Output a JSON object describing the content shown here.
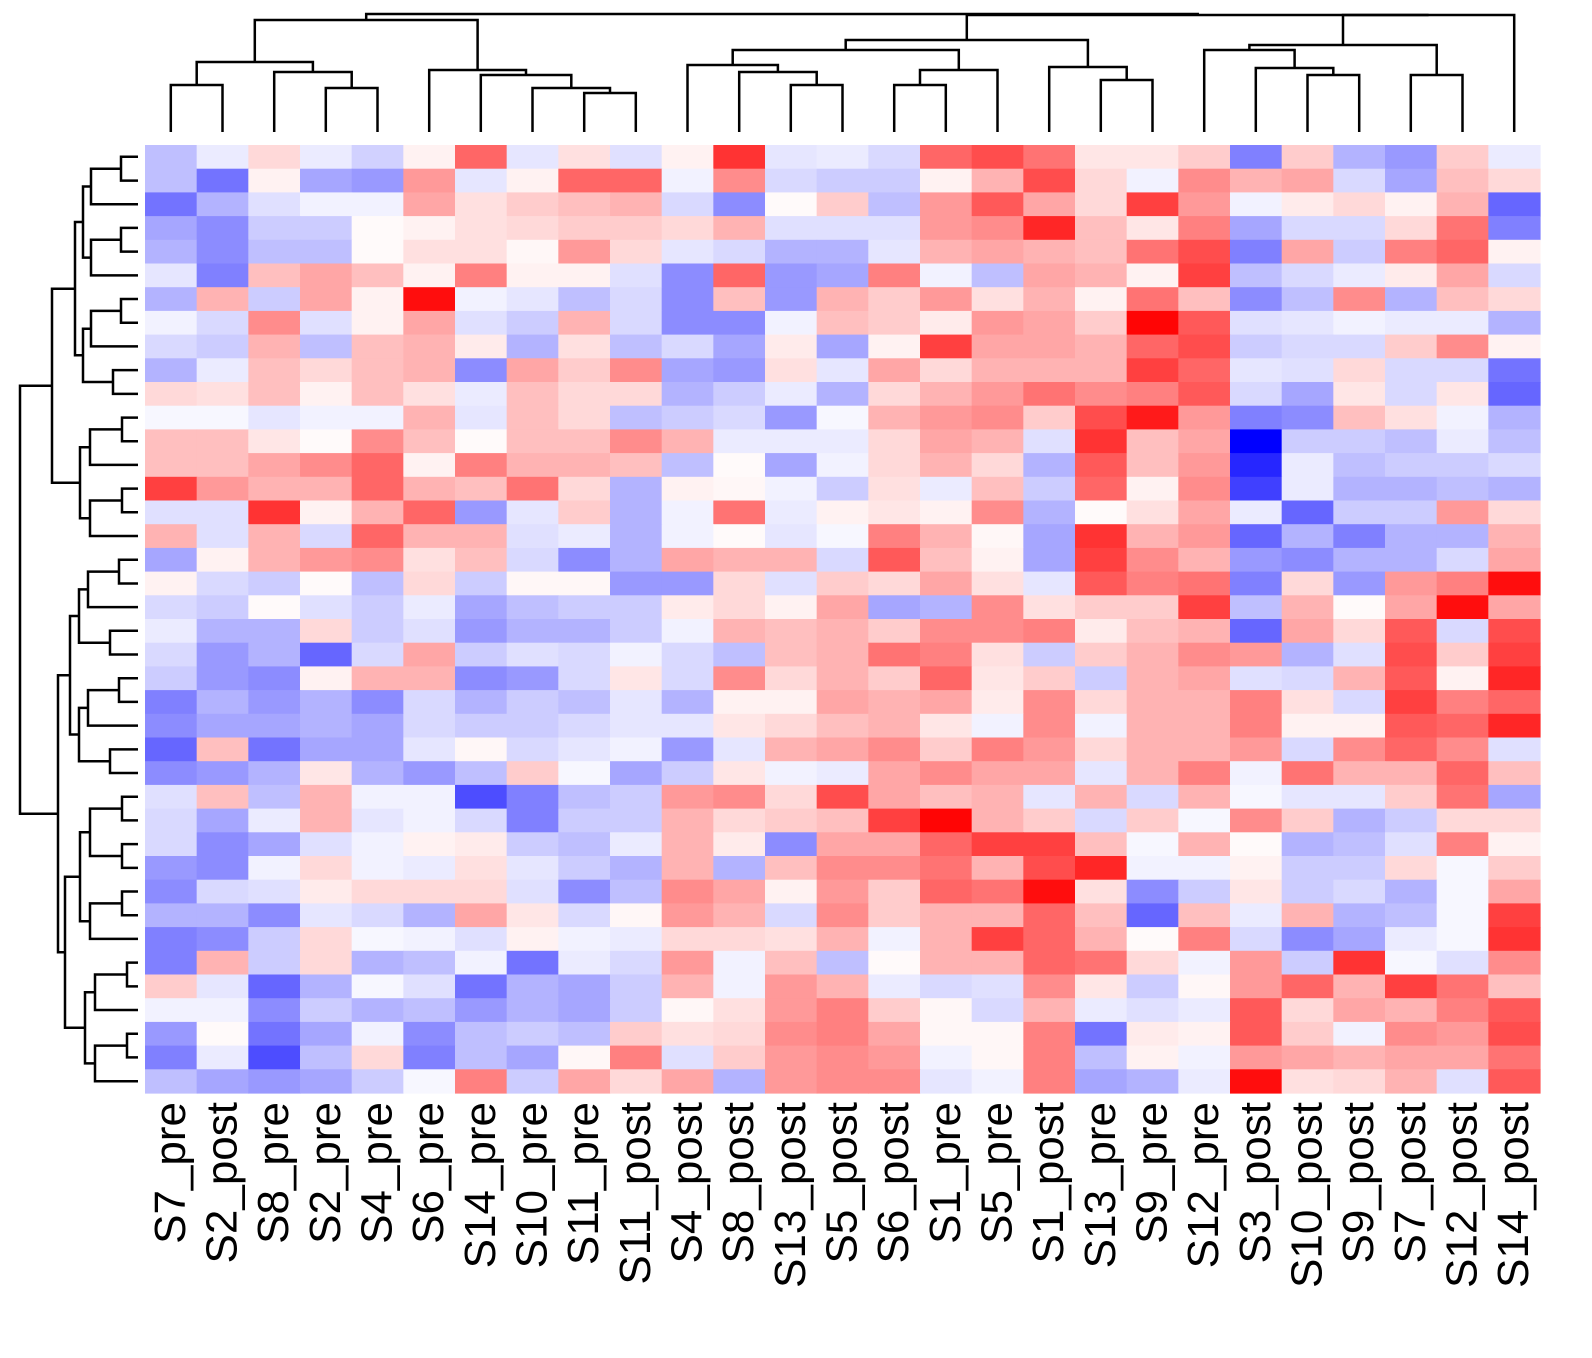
{
  "chart_data": {
    "type": "heatmap",
    "title": "",
    "xlabel": "",
    "ylabel": "",
    "color_scale": {
      "low": "#0000ff",
      "mid": "#ffffff",
      "high": "#ff0000",
      "range": [
        -1,
        1
      ]
    },
    "columns": [
      "S7_pre",
      "S2_post",
      "S8_pre",
      "S2_pre",
      "S4_pre",
      "S6_pre",
      "S14_pre",
      "S10_pre",
      "S11_pre",
      "S11_post",
      "S4_post",
      "S8_post",
      "S13_post",
      "S5_post",
      "S6_post",
      "S1_pre",
      "S5_pre",
      "S1_post",
      "S13_pre",
      "S9_pre",
      "S12_pre",
      "S3_post",
      "S10_post",
      "S9_post",
      "S7_post",
      "S12_post",
      "S14_post"
    ],
    "row_count": 40,
    "values": [
      [
        -0.25,
        -0.08,
        0.15,
        -0.08,
        -0.18,
        0.05,
        0.6,
        -0.1,
        0.12,
        -0.12,
        0.05,
        0.8,
        -0.1,
        -0.08,
        -0.15,
        0.6,
        0.7,
        0.55,
        0.1,
        0.1,
        0.2,
        -0.5,
        0.2,
        -0.3,
        -0.4,
        0.2,
        -0.08
      ],
      [
        -0.25,
        -0.55,
        0.05,
        -0.35,
        -0.4,
        0.4,
        -0.1,
        0.05,
        0.6,
        0.6,
        -0.05,
        0.45,
        -0.15,
        -0.2,
        -0.2,
        0.05,
        0.3,
        0.7,
        0.15,
        -0.05,
        0.45,
        0.3,
        0.35,
        -0.15,
        -0.35,
        0.25,
        0.15
      ],
      [
        -0.55,
        -0.3,
        -0.12,
        -0.05,
        -0.05,
        0.35,
        0.12,
        0.2,
        0.25,
        0.3,
        -0.15,
        -0.45,
        0.02,
        0.2,
        -0.25,
        0.4,
        0.65,
        0.35,
        0.15,
        0.75,
        0.4,
        -0.05,
        0.08,
        0.15,
        0.05,
        0.3,
        -0.6
      ],
      [
        -0.35,
        -0.45,
        -0.2,
        -0.2,
        0.02,
        0.05,
        0.12,
        0.15,
        0.2,
        0.2,
        0.15,
        0.3,
        -0.12,
        -0.12,
        -0.12,
        0.4,
        0.45,
        0.85,
        0.25,
        0.1,
        0.5,
        -0.35,
        -0.15,
        -0.15,
        0.15,
        0.55,
        -0.5
      ],
      [
        -0.3,
        -0.45,
        -0.25,
        -0.25,
        0.02,
        0.12,
        0.12,
        0.03,
        0.4,
        0.15,
        -0.1,
        -0.15,
        -0.3,
        -0.3,
        -0.1,
        0.3,
        0.35,
        0.3,
        0.25,
        0.55,
        0.7,
        -0.5,
        0.35,
        -0.2,
        0.5,
        0.6,
        0.05
      ],
      [
        -0.1,
        -0.5,
        0.25,
        0.35,
        0.25,
        0.05,
        0.5,
        0.05,
        0.05,
        -0.12,
        -0.45,
        0.6,
        -0.4,
        -0.35,
        0.5,
        -0.05,
        -0.25,
        0.35,
        0.3,
        0.05,
        0.75,
        -0.25,
        -0.15,
        -0.08,
        0.08,
        0.35,
        -0.15
      ],
      [
        -0.3,
        0.3,
        -0.2,
        0.35,
        0.05,
        0.95,
        -0.05,
        -0.1,
        -0.25,
        -0.15,
        -0.45,
        0.25,
        -0.4,
        0.3,
        0.2,
        0.4,
        0.12,
        0.3,
        0.05,
        0.55,
        0.25,
        -0.45,
        -0.25,
        0.45,
        -0.3,
        0.25,
        0.15
      ],
      [
        -0.05,
        -0.15,
        0.45,
        -0.12,
        0.05,
        0.35,
        -0.12,
        -0.2,
        0.3,
        -0.15,
        -0.45,
        -0.45,
        -0.05,
        0.25,
        0.2,
        0.08,
        0.4,
        0.35,
        0.2,
        0.98,
        0.65,
        -0.12,
        -0.1,
        -0.05,
        -0.08,
        -0.08,
        -0.3
      ],
      [
        -0.15,
        -0.2,
        0.3,
        -0.25,
        0.25,
        0.3,
        0.08,
        -0.3,
        0.12,
        -0.25,
        -0.15,
        -0.35,
        0.08,
        -0.35,
        0.05,
        0.75,
        0.35,
        0.35,
        0.3,
        0.6,
        0.7,
        -0.2,
        -0.15,
        -0.15,
        0.2,
        0.45,
        0.05
      ],
      [
        -0.3,
        -0.08,
        0.25,
        0.15,
        0.25,
        0.3,
        -0.45,
        0.35,
        0.2,
        0.45,
        -0.35,
        -0.4,
        0.12,
        -0.1,
        0.35,
        0.15,
        0.3,
        0.3,
        0.3,
        0.75,
        0.6,
        -0.1,
        -0.12,
        0.15,
        -0.15,
        -0.15,
        -0.55
      ],
      [
        0.15,
        0.12,
        0.25,
        0.05,
        0.25,
        0.12,
        -0.08,
        0.25,
        0.15,
        0.15,
        -0.3,
        -0.2,
        -0.08,
        -0.3,
        0.15,
        0.3,
        0.4,
        0.55,
        0.45,
        0.5,
        0.65,
        -0.15,
        -0.35,
        0.1,
        -0.15,
        0.1,
        -0.6
      ],
      [
        -0.03,
        -0.03,
        -0.1,
        -0.05,
        -0.05,
        0.3,
        -0.1,
        0.25,
        0.15,
        -0.25,
        -0.2,
        -0.15,
        -0.4,
        -0.03,
        0.3,
        0.4,
        0.45,
        0.2,
        0.7,
        0.9,
        0.4,
        -0.5,
        -0.45,
        0.25,
        0.12,
        -0.05,
        -0.3
      ],
      [
        0.25,
        0.25,
        0.1,
        0.02,
        0.45,
        0.25,
        0.02,
        0.25,
        0.25,
        0.45,
        0.3,
        -0.08,
        -0.08,
        -0.08,
        0.15,
        0.35,
        0.3,
        -0.12,
        0.8,
        0.25,
        0.35,
        -1.0,
        -0.2,
        -0.2,
        -0.25,
        -0.08,
        -0.25
      ],
      [
        0.25,
        0.25,
        0.35,
        0.45,
        0.6,
        0.05,
        0.5,
        0.3,
        0.3,
        0.25,
        -0.25,
        0.02,
        -0.35,
        -0.05,
        0.15,
        0.3,
        0.15,
        -0.3,
        0.65,
        0.25,
        0.4,
        -0.85,
        -0.08,
        -0.25,
        -0.2,
        -0.2,
        -0.15
      ],
      [
        0.75,
        0.4,
        0.3,
        0.3,
        0.6,
        0.3,
        0.25,
        0.55,
        0.15,
        -0.3,
        0.05,
        0.03,
        -0.05,
        -0.2,
        0.12,
        -0.08,
        0.25,
        -0.2,
        0.6,
        0.05,
        0.45,
        -0.75,
        -0.08,
        -0.3,
        -0.3,
        -0.25,
        -0.3
      ],
      [
        -0.12,
        -0.12,
        0.8,
        0.05,
        0.3,
        0.6,
        -0.4,
        -0.1,
        0.2,
        -0.3,
        -0.05,
        0.55,
        -0.08,
        0.05,
        0.1,
        0.05,
        0.45,
        -0.3,
        0.02,
        0.12,
        0.35,
        -0.08,
        -0.6,
        -0.2,
        -0.2,
        0.4,
        0.15
      ],
      [
        0.3,
        -0.12,
        0.3,
        -0.15,
        0.6,
        0.3,
        0.3,
        -0.12,
        -0.08,
        -0.3,
        -0.05,
        0.02,
        -0.1,
        -0.03,
        0.5,
        0.3,
        0.03,
        -0.35,
        0.8,
        0.3,
        0.4,
        -0.6,
        -0.3,
        -0.5,
        -0.3,
        -0.3,
        0.3
      ],
      [
        -0.35,
        0.05,
        0.3,
        0.4,
        0.45,
        0.12,
        0.25,
        -0.15,
        -0.45,
        -0.3,
        0.35,
        0.3,
        0.3,
        -0.15,
        0.65,
        0.25,
        0.05,
        -0.35,
        0.75,
        0.45,
        0.3,
        -0.4,
        -0.45,
        -0.3,
        -0.3,
        -0.15,
        0.35
      ],
      [
        0.05,
        -0.15,
        -0.2,
        0.02,
        -0.25,
        0.15,
        -0.2,
        0.03,
        0.03,
        -0.4,
        -0.4,
        0.15,
        -0.12,
        0.2,
        0.15,
        0.35,
        0.12,
        -0.1,
        0.65,
        0.5,
        0.55,
        -0.5,
        0.15,
        -0.4,
        0.4,
        0.5,
        0.95
      ],
      [
        -0.15,
        -0.2,
        0.02,
        -0.12,
        -0.2,
        -0.08,
        -0.35,
        -0.25,
        -0.2,
        -0.2,
        0.08,
        0.15,
        0.05,
        0.35,
        -0.35,
        -0.3,
        0.45,
        0.12,
        0.2,
        0.2,
        0.75,
        -0.25,
        0.3,
        0.02,
        0.35,
        0.95,
        0.35
      ],
      [
        -0.08,
        -0.3,
        -0.3,
        0.15,
        -0.2,
        -0.12,
        -0.4,
        -0.3,
        -0.3,
        -0.2,
        -0.05,
        0.3,
        0.25,
        0.3,
        0.2,
        0.45,
        0.45,
        0.5,
        0.08,
        0.25,
        0.3,
        -0.6,
        0.35,
        0.15,
        0.65,
        -0.15,
        0.7
      ],
      [
        -0.15,
        -0.4,
        -0.3,
        -0.6,
        -0.15,
        0.35,
        -0.2,
        -0.12,
        -0.15,
        -0.05,
        -0.15,
        -0.25,
        0.25,
        0.3,
        0.55,
        0.5,
        0.12,
        -0.2,
        0.2,
        0.3,
        0.45,
        0.4,
        -0.3,
        -0.12,
        0.7,
        0.2,
        0.75
      ],
      [
        -0.2,
        -0.4,
        -0.45,
        0.05,
        0.3,
        0.3,
        -0.45,
        -0.4,
        -0.15,
        0.1,
        -0.15,
        0.45,
        0.15,
        0.3,
        0.2,
        0.6,
        0.1,
        0.2,
        -0.2,
        0.3,
        0.35,
        -0.12,
        -0.15,
        0.3,
        0.65,
        0.05,
        0.85
      ],
      [
        -0.5,
        -0.3,
        -0.4,
        -0.3,
        -0.45,
        -0.15,
        -0.3,
        -0.2,
        -0.25,
        -0.1,
        -0.3,
        0.05,
        0.05,
        0.35,
        0.3,
        0.35,
        0.08,
        0.45,
        0.15,
        0.3,
        0.3,
        0.5,
        0.12,
        -0.15,
        0.75,
        0.5,
        0.6
      ],
      [
        -0.45,
        -0.35,
        -0.35,
        -0.3,
        -0.35,
        -0.15,
        -0.2,
        -0.2,
        -0.15,
        -0.1,
        -0.1,
        0.1,
        0.15,
        0.25,
        0.3,
        0.1,
        -0.05,
        0.45,
        -0.05,
        0.3,
        0.3,
        0.5,
        0.05,
        0.05,
        0.65,
        0.6,
        0.85
      ],
      [
        -0.6,
        0.25,
        -0.55,
        -0.35,
        -0.35,
        -0.1,
        0.03,
        -0.15,
        -0.1,
        -0.05,
        -0.4,
        -0.1,
        0.3,
        0.35,
        0.45,
        0.2,
        0.5,
        0.4,
        0.15,
        0.3,
        0.3,
        0.4,
        -0.15,
        0.45,
        0.6,
        0.45,
        -0.12
      ],
      [
        -0.45,
        -0.4,
        -0.3,
        0.1,
        -0.3,
        -0.4,
        -0.25,
        0.2,
        -0.03,
        -0.35,
        -0.2,
        0.1,
        -0.05,
        -0.08,
        0.35,
        0.45,
        0.35,
        0.35,
        -0.1,
        0.3,
        0.5,
        -0.05,
        0.55,
        0.3,
        0.3,
        0.6,
        0.25
      ],
      [
        -0.12,
        0.25,
        -0.25,
        0.3,
        -0.05,
        -0.05,
        -0.7,
        -0.5,
        -0.25,
        -0.2,
        0.4,
        0.45,
        0.15,
        0.7,
        0.35,
        0.25,
        0.3,
        -0.1,
        0.3,
        -0.15,
        0.3,
        -0.03,
        -0.1,
        -0.1,
        0.2,
        0.55,
        -0.35
      ],
      [
        -0.15,
        -0.35,
        -0.08,
        0.3,
        -0.1,
        -0.05,
        -0.15,
        -0.5,
        -0.2,
        -0.2,
        0.3,
        0.15,
        0.2,
        0.25,
        0.75,
        0.98,
        0.3,
        0.2,
        -0.15,
        0.2,
        -0.03,
        0.45,
        0.2,
        -0.3,
        -0.2,
        0.15,
        0.15
      ],
      [
        -0.15,
        -0.45,
        -0.35,
        -0.12,
        -0.05,
        0.05,
        0.08,
        -0.2,
        -0.25,
        -0.08,
        0.3,
        0.08,
        -0.45,
        0.35,
        0.35,
        0.6,
        0.75,
        0.75,
        0.25,
        -0.03,
        0.3,
        0.02,
        -0.3,
        -0.25,
        -0.12,
        0.5,
        0.05
      ],
      [
        -0.4,
        -0.45,
        -0.05,
        0.15,
        -0.05,
        -0.08,
        0.12,
        -0.1,
        -0.2,
        -0.3,
        0.3,
        -0.3,
        0.25,
        0.45,
        0.45,
        0.55,
        0.3,
        0.7,
        0.85,
        -0.05,
        -0.05,
        0.05,
        -0.2,
        -0.2,
        0.15,
        -0.03,
        0.2
      ],
      [
        -0.45,
        -0.15,
        -0.12,
        0.08,
        0.15,
        0.15,
        0.15,
        -0.12,
        -0.45,
        -0.25,
        0.45,
        0.35,
        0.05,
        0.4,
        0.2,
        0.6,
        0.55,
        0.95,
        0.12,
        -0.45,
        -0.2,
        0.1,
        -0.2,
        -0.15,
        -0.3,
        -0.03,
        0.35
      ],
      [
        -0.3,
        -0.3,
        -0.45,
        -0.1,
        -0.15,
        -0.3,
        0.35,
        0.1,
        -0.15,
        0.03,
        0.4,
        0.3,
        -0.15,
        0.45,
        0.2,
        0.3,
        0.3,
        0.6,
        0.25,
        -0.6,
        0.25,
        -0.08,
        0.3,
        -0.3,
        -0.25,
        -0.03,
        0.75
      ],
      [
        -0.5,
        -0.45,
        -0.2,
        0.15,
        -0.03,
        -0.05,
        -0.12,
        0.05,
        -0.05,
        -0.08,
        0.15,
        0.15,
        0.12,
        0.3,
        -0.05,
        0.3,
        0.75,
        0.6,
        0.3,
        0.02,
        0.5,
        -0.15,
        -0.45,
        -0.35,
        -0.08,
        -0.03,
        0.8
      ],
      [
        -0.5,
        0.3,
        -0.2,
        0.15,
        -0.3,
        -0.25,
        -0.05,
        -0.55,
        -0.08,
        -0.15,
        0.4,
        -0.05,
        0.25,
        -0.25,
        0.02,
        0.3,
        0.3,
        0.6,
        0.55,
        0.15,
        -0.05,
        0.4,
        -0.2,
        0.8,
        -0.03,
        -0.12,
        0.45
      ],
      [
        0.2,
        -0.1,
        -0.6,
        -0.3,
        -0.03,
        -0.12,
        -0.55,
        -0.3,
        -0.35,
        -0.2,
        0.3,
        -0.05,
        0.4,
        0.3,
        -0.08,
        -0.15,
        -0.12,
        0.45,
        0.1,
        -0.2,
        0.03,
        0.4,
        0.6,
        0.3,
        0.75,
        0.55,
        0.25
      ],
      [
        -0.05,
        -0.05,
        -0.45,
        -0.2,
        -0.3,
        -0.25,
        -0.4,
        -0.3,
        -0.35,
        -0.2,
        0.03,
        0.12,
        0.4,
        0.5,
        0.2,
        0.03,
        -0.15,
        0.3,
        -0.08,
        -0.12,
        -0.08,
        0.65,
        0.15,
        0.35,
        0.3,
        0.5,
        0.65
      ],
      [
        -0.4,
        0.02,
        -0.55,
        -0.35,
        -0.05,
        -0.45,
        -0.25,
        -0.2,
        -0.25,
        0.2,
        0.12,
        0.15,
        0.45,
        0.5,
        0.35,
        0.03,
        0.03,
        0.5,
        -0.55,
        0.08,
        0.05,
        0.65,
        0.2,
        -0.05,
        0.45,
        0.4,
        0.7
      ],
      [
        -0.5,
        -0.08,
        -0.7,
        -0.25,
        0.15,
        -0.5,
        -0.25,
        -0.35,
        0.03,
        0.5,
        -0.12,
        0.2,
        0.4,
        0.45,
        0.4,
        -0.05,
        0.03,
        0.5,
        -0.25,
        0.05,
        -0.05,
        0.4,
        0.35,
        0.3,
        0.35,
        0.35,
        0.55
      ],
      [
        -0.25,
        -0.35,
        -0.4,
        -0.35,
        -0.2,
        -0.03,
        0.5,
        -0.2,
        0.35,
        0.15,
        0.35,
        -0.3,
        0.4,
        0.45,
        0.45,
        -0.1,
        -0.05,
        0.5,
        -0.35,
        -0.3,
        -0.08,
        0.95,
        0.12,
        0.15,
        0.3,
        -0.12,
        0.65
      ]
    ]
  }
}
